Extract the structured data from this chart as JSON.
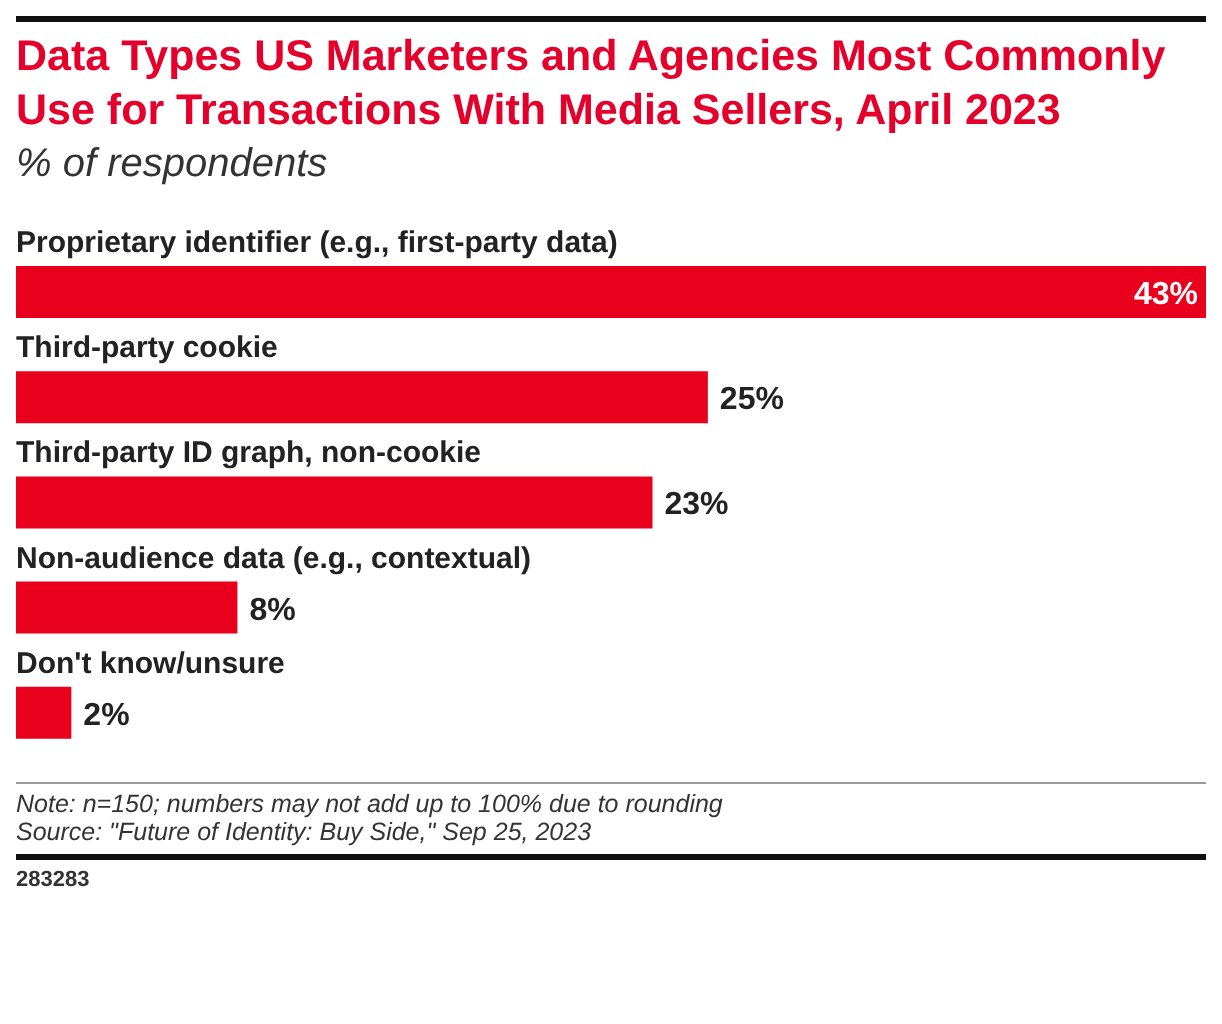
{
  "chart_data": {
    "type": "bar",
    "orientation": "horizontal",
    "title": "Data Types US Marketers and Agencies Most Commonly Use for Transactions With Media Sellers, April 2023",
    "subtitle": "% of respondents",
    "categories": [
      "Proprietary identifier (e.g., first-party data)",
      "Third-party cookie",
      "Third-party ID graph, non-cookie",
      "Non-audience data (e.g., contextual)",
      "Don't know/unsure"
    ],
    "values": [
      43,
      25,
      23,
      8,
      2
    ],
    "value_labels": [
      "43%",
      "25%",
      "23%",
      "8%",
      "2%"
    ],
    "color": "#e8001c",
    "annotations": [
      "Note: n=150; numbers may not add up to 100% due to rounding",
      "Source: \"Future of Identity: Buy Side,\" Sep 25, 2023",
      "283283"
    ]
  }
}
